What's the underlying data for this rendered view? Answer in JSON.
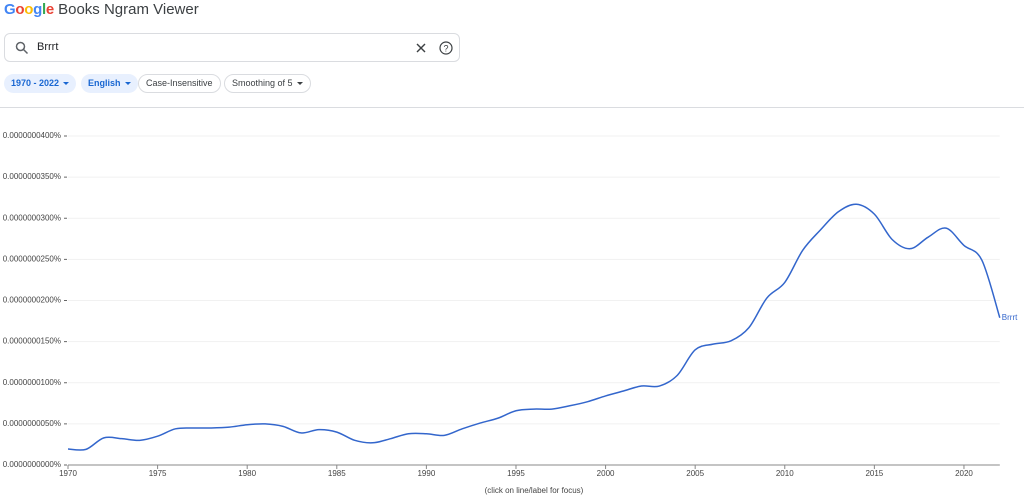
{
  "header": {
    "logo": "Google",
    "title": "Books Ngram Viewer"
  },
  "search": {
    "query": "Brrrt"
  },
  "filters": [
    "1970 - 2022",
    "English",
    "Case-Insensitive",
    "Smoothing of 5"
  ],
  "chart_data": {
    "type": "line",
    "x": [
      1970,
      1971,
      1972,
      1973,
      1974,
      1975,
      1976,
      1977,
      1978,
      1979,
      1980,
      1981,
      1982,
      1983,
      1984,
      1985,
      1986,
      1987,
      1988,
      1989,
      1990,
      1991,
      1992,
      1993,
      1994,
      1995,
      1996,
      1997,
      1998,
      1999,
      2000,
      2001,
      2002,
      2003,
      2004,
      2005,
      2006,
      2007,
      2008,
      2009,
      2010,
      2011,
      2012,
      2013,
      2014,
      2015,
      2016,
      2017,
      2018,
      2019,
      2020,
      2021,
      2022
    ],
    "series": [
      {
        "name": "Brrrt",
        "color": "#3366cc",
        "values": [
          1.95e-09,
          1.9e-09,
          3.3e-09,
          3.2e-09,
          3e-09,
          3.5e-09,
          4.4e-09,
          4.5e-09,
          4.5e-09,
          4.6e-09,
          4.9e-09,
          5e-09,
          4.7e-09,
          3.9e-09,
          4.3e-09,
          4e-09,
          3e-09,
          2.7e-09,
          3.2e-09,
          3.8e-09,
          3.8e-09,
          3.6e-09,
          4.4e-09,
          5.1e-09,
          5.7e-09,
          6.6e-09,
          6.8e-09,
          6.8e-09,
          7.2e-09,
          7.7e-09,
          8.4e-09,
          9e-09,
          9.6e-09,
          9.6e-09,
          1.09e-08,
          1.4e-08,
          1.47e-08,
          1.51e-08,
          1.67e-08,
          2.03e-08,
          2.22e-08,
          2.61e-08,
          2.86e-08,
          3.08e-08,
          3.17e-08,
          3.05e-08,
          2.74e-08,
          2.63e-08,
          2.77e-08,
          2.88e-08,
          2.67e-08,
          2.49e-08,
          1.79e-08
        ]
      }
    ],
    "xlim": [
      1970,
      2022
    ],
    "xticks": [
      1970,
      1975,
      1980,
      1985,
      1990,
      1995,
      2000,
      2005,
      2010,
      2015,
      2020
    ],
    "ylim": [
      0,
      4e-08
    ],
    "yticks": [
      {
        "value": 0,
        "label": "0.0000000000%"
      },
      {
        "value": 5e-09,
        "label": "0.0000000050%"
      },
      {
        "value": 1e-08,
        "label": "0.0000000100%"
      },
      {
        "value": 1.5e-08,
        "label": "0.0000000150%"
      },
      {
        "value": 2e-08,
        "label": "0.0000000200%"
      },
      {
        "value": 2.5e-08,
        "label": "0.0000000250%"
      },
      {
        "value": 3e-08,
        "label": "0.0000000300%"
      },
      {
        "value": 3.5e-08,
        "label": "0.0000000350%"
      },
      {
        "value": 4e-08,
        "label": "0.0000000400%"
      }
    ],
    "grid": true,
    "annotation": "(click on line/label for focus)"
  }
}
